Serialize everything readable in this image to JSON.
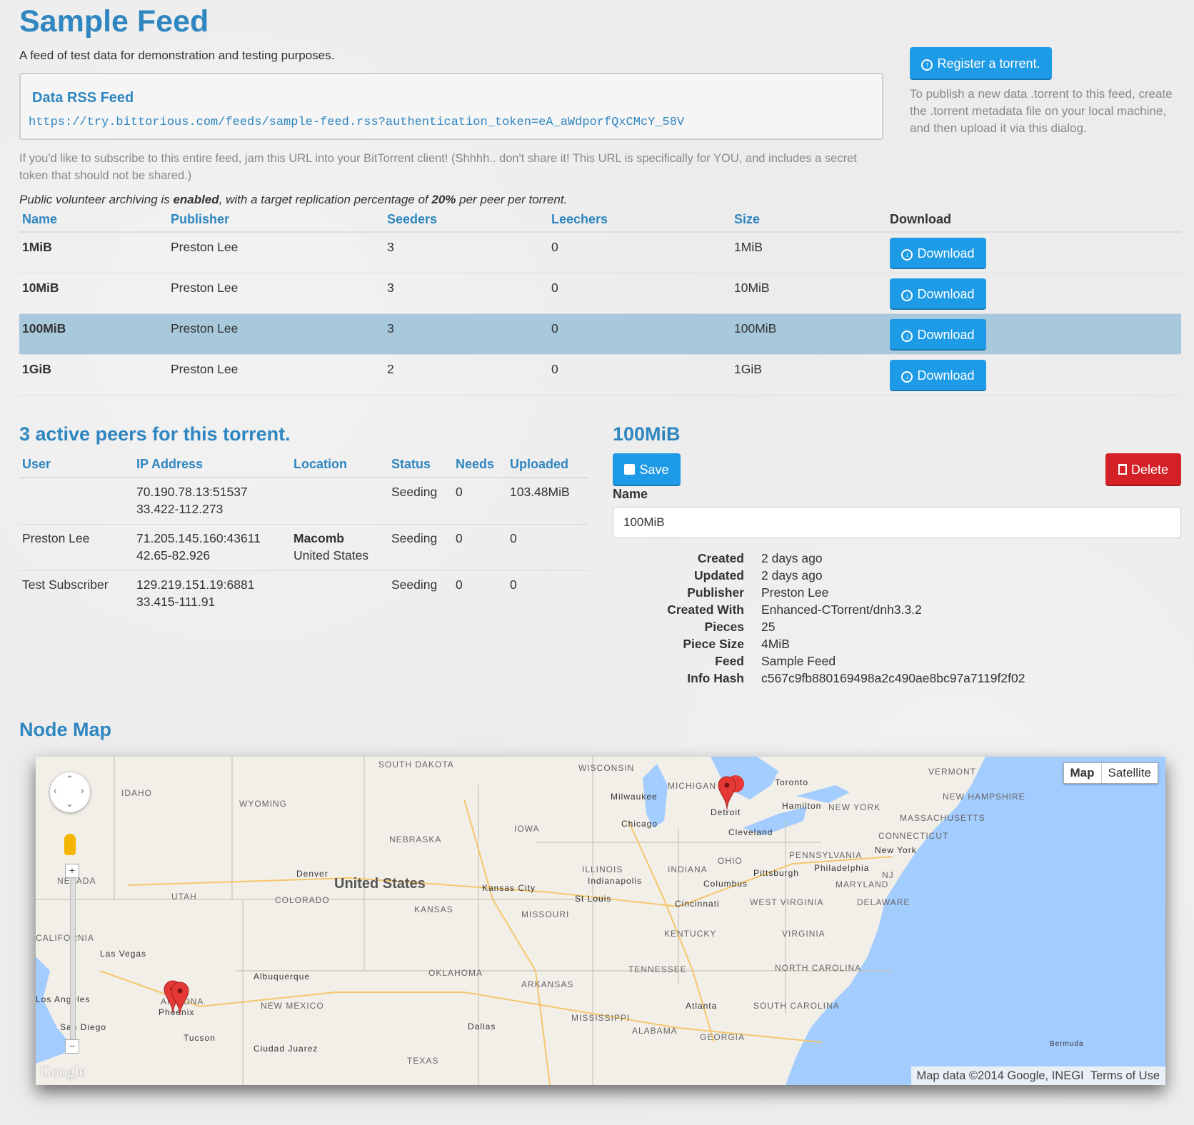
{
  "header": {
    "title": "Sample Feed",
    "subtitle": "A feed of test data for demonstration and testing purposes."
  },
  "rss": {
    "heading": "Data RSS Feed",
    "url": "https://try.bittorious.com/feeds/sample-feed.rss?authentication_token=eA_aWdporfQxCMcY_58V",
    "hint": "If you'd like to subscribe to this entire feed, jam this URL into your BitTorrent client! (Shhhh.. don't share it! This URL is specifically for YOU, and includes a secret token that should not be shared.)"
  },
  "archive": {
    "prefix": "Public volunteer archiving is ",
    "status": "enabled",
    "middle": ", with a target replication percentage of ",
    "percent": "20%",
    "suffix": " per peer per torrent."
  },
  "register": {
    "label": "Register a torrent.",
    "note": "To publish a new data .torrent to this feed, create the .torrent metadata file on your local machine, and then upload it via this dialog."
  },
  "torrents": {
    "columns": [
      "Name",
      "Publisher",
      "Seeders",
      "Leechers",
      "Size",
      "Download"
    ],
    "download_label": "Download",
    "rows": [
      {
        "name": "1MiB",
        "publisher": "Preston Lee",
        "seeders": "3",
        "leechers": "0",
        "size": "1MiB"
      },
      {
        "name": "10MiB",
        "publisher": "Preston Lee",
        "seeders": "3",
        "leechers": "0",
        "size": "10MiB"
      },
      {
        "name": "100MiB",
        "publisher": "Preston Lee",
        "seeders": "3",
        "leechers": "0",
        "size": "100MiB"
      },
      {
        "name": "1GiB",
        "publisher": "Preston Lee",
        "seeders": "2",
        "leechers": "0",
        "size": "1GiB"
      }
    ]
  },
  "peers": {
    "heading": "3 active peers for this torrent.",
    "columns": [
      "User",
      "IP Address",
      "Location",
      "Status",
      "Needs",
      "Uploaded"
    ],
    "rows": [
      {
        "user": "",
        "ip": "70.190.78.13:51537",
        "coords": "33.422-112.273",
        "city": "",
        "country": "",
        "status": "Seeding",
        "needs": "0",
        "uploaded": "103.48MiB"
      },
      {
        "user": "Preston Lee",
        "ip": "71.205.145.160:43611",
        "coords": "42.65-82.926",
        "city": "Macomb",
        "country": "United States",
        "status": "Seeding",
        "needs": "0",
        "uploaded": "0"
      },
      {
        "user": "Test Subscriber",
        "ip": "129.219.151.19:6881",
        "coords": "33.415-111.91",
        "city": "",
        "country": "",
        "status": "Seeding",
        "needs": "0",
        "uploaded": "0"
      }
    ]
  },
  "detail": {
    "heading": "100MiB",
    "save_label": "Save",
    "delete_label": "Delete",
    "name_label": "Name",
    "name_value": "100MiB",
    "meta": [
      {
        "k": "Created",
        "v": "2 days ago"
      },
      {
        "k": "Updated",
        "v": "2 days ago"
      },
      {
        "k": "Publisher",
        "v": "Preston Lee"
      },
      {
        "k": "Created With",
        "v": "Enhanced-CTorrent/dnh3.3.2"
      },
      {
        "k": "Pieces",
        "v": "25"
      },
      {
        "k": "Piece Size",
        "v": "4MiB"
      },
      {
        "k": "Feed",
        "v": "Sample Feed"
      },
      {
        "k": "Info Hash",
        "v": "c567c9fb880169498a2c490ae8bc97a7119f2f02"
      }
    ]
  },
  "map": {
    "heading": "Node Map",
    "type_map": "Map",
    "type_satellite": "Satellite",
    "attribution": "Map data ©2014 Google, INEGI",
    "terms": "Terms of Use",
    "logo": "Google",
    "country_label": "United States",
    "labels": [
      "SOUTH DAKOTA",
      "WISCONSIN",
      "MICHIGAN",
      "Toronto",
      "VERMONT",
      "NEW HAMPSHIRE",
      "IDAHO",
      "WYOMING",
      "Milwaukee",
      "Detroit",
      "Hamilton",
      "NEW YORK",
      "MASSACHUSETTS",
      "Chicago",
      "Cleveland",
      "IOWA",
      "NEBRASKA",
      "CONNECTICUT",
      "New York",
      "PENNSYLVANIA",
      "OHIO",
      "Philadelphia",
      "NEVADA",
      "Denver",
      "ILLINOIS",
      "INDIANA",
      "Pittsburgh",
      "MARYLAND",
      "NJ",
      "UTAH",
      "Indianapolis",
      "Columbus",
      "COLORADO",
      "Kansas City",
      "St Louis",
      "Cincinnati",
      "WEST VIRGINIA",
      "DELAWARE",
      "KANSAS",
      "MISSOURI",
      "KENTUCKY",
      "VIRGINIA",
      "CALIFORNIA",
      "Las Vegas",
      "Albuquerque",
      "OKLAHOMA",
      "TENNESSEE",
      "NORTH CAROLINA",
      "ARKANSAS",
      "Los Angeles",
      "ARIZONA",
      "NEW MEXICO",
      "Atlanta",
      "SOUTH CAROLINA",
      "Phoenix",
      "San Diego",
      "MISSISSIPPI",
      "Dallas",
      "ALABAMA",
      "GEORGIA",
      "Tucson",
      "Ciudad Juarez",
      "Bermuda",
      "TEXAS"
    ]
  }
}
